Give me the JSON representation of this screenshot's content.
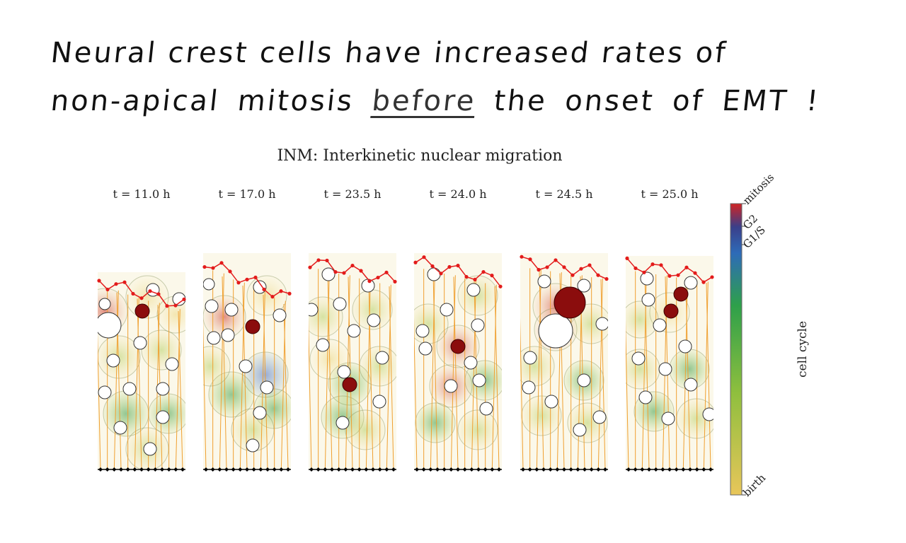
{
  "headline": {
    "line1": "Neural crest cells have increased rates of",
    "line2_before": "non-apical mitosis ",
    "line2_emphasis": "before",
    "line2_after": " the onset of EMT !"
  },
  "figure": {
    "title": "INM: Interkinetic nuclear migration",
    "panels": [
      {
        "label": "t = 11.0 h"
      },
      {
        "label": "t = 17.0 h"
      },
      {
        "label": "t = 23.5 h"
      },
      {
        "label": "t = 24.0 h"
      },
      {
        "label": "t = 24.5 h"
      },
      {
        "label": "t = 25.0 h"
      }
    ],
    "colorbar": {
      "axis_label": "cell cycle",
      "ticks": [
        "mitosis",
        "G2",
        "G1/S",
        "birth"
      ],
      "colors": [
        "#d12424",
        "#2e6bb8",
        "#2ea04a",
        "#e8c65a"
      ]
    }
  }
}
